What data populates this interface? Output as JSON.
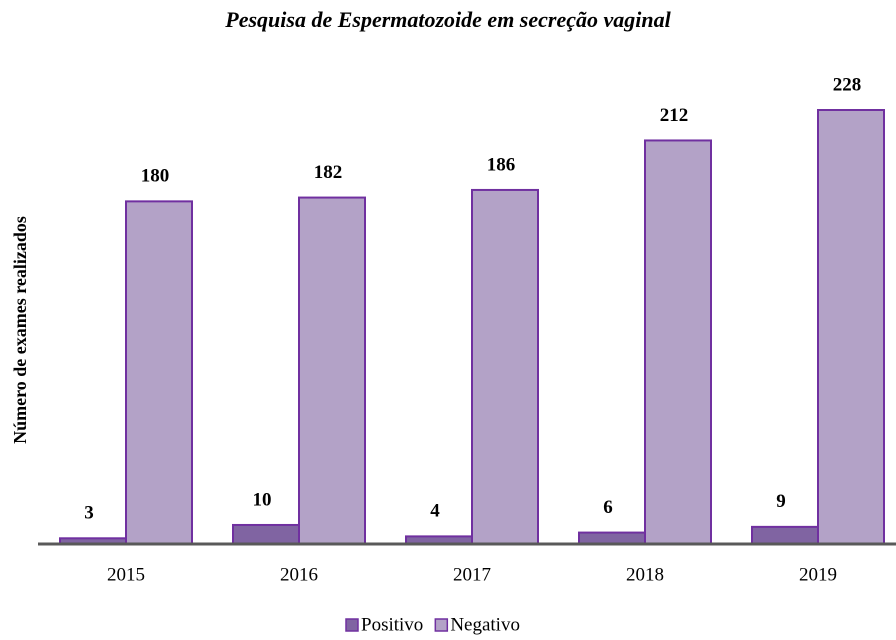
{
  "chart_data": {
    "type": "bar",
    "title": "Pesquisa de Espermatozoide em secreção vaginal",
    "y_label": "Número de exames realizados",
    "categories": [
      "2015",
      "2016",
      "2017",
      "2018",
      "2019"
    ],
    "series": [
      {
        "name": "Positivo",
        "color": "#8064a2",
        "values": [
          3,
          10,
          4,
          6,
          9
        ]
      },
      {
        "name": "Negativo",
        "color": "#b3a2c7",
        "values": [
          180,
          182,
          186,
          212,
          228
        ]
      }
    ],
    "legend": "bottom"
  }
}
